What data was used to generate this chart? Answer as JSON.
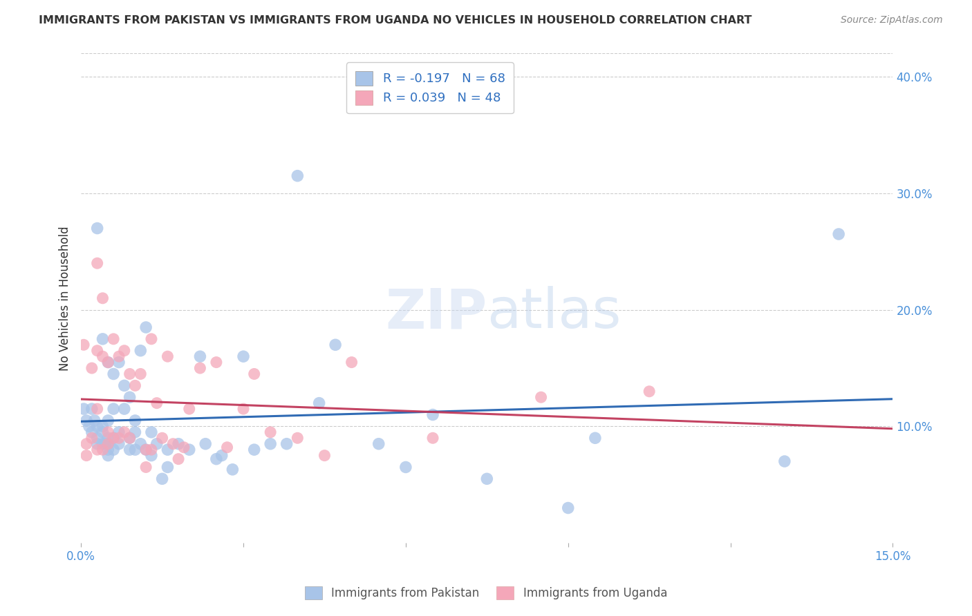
{
  "title": "IMMIGRANTS FROM PAKISTAN VS IMMIGRANTS FROM UGANDA NO VEHICLES IN HOUSEHOLD CORRELATION CHART",
  "source": "Source: ZipAtlas.com",
  "ylabel": "No Vehicles in Household",
  "x_min": 0.0,
  "x_max": 0.15,
  "y_min": 0.0,
  "y_max": 0.42,
  "y_ticks_right": [
    0.0,
    0.1,
    0.2,
    0.3,
    0.4
  ],
  "y_tick_labels_right": [
    "",
    "10.0%",
    "20.0%",
    "30.0%",
    "40.0%"
  ],
  "pakistan_R": -0.197,
  "pakistan_N": 68,
  "uganda_R": 0.039,
  "uganda_N": 48,
  "pakistan_color": "#a8c4e8",
  "pakistan_trend_color": "#2563b0",
  "uganda_color": "#f4a7b9",
  "uganda_trend_color": "#c0395a",
  "pakistan_x": [
    0.0005,
    0.001,
    0.0015,
    0.002,
    0.002,
    0.0025,
    0.003,
    0.003,
    0.003,
    0.004,
    0.004,
    0.004,
    0.0045,
    0.005,
    0.005,
    0.005,
    0.005,
    0.005,
    0.006,
    0.006,
    0.006,
    0.006,
    0.007,
    0.007,
    0.007,
    0.008,
    0.008,
    0.009,
    0.009,
    0.009,
    0.01,
    0.01,
    0.01,
    0.011,
    0.011,
    0.012,
    0.012,
    0.013,
    0.013,
    0.014,
    0.015,
    0.016,
    0.016,
    0.018,
    0.02,
    0.022,
    0.023,
    0.025,
    0.026,
    0.028,
    0.03,
    0.032,
    0.035,
    0.038,
    0.04,
    0.044,
    0.047,
    0.055,
    0.06,
    0.065,
    0.075,
    0.09,
    0.095,
    0.13,
    0.14,
    0.003,
    0.004,
    0.005
  ],
  "pakistan_y": [
    0.115,
    0.105,
    0.1,
    0.115,
    0.095,
    0.105,
    0.1,
    0.09,
    0.085,
    0.1,
    0.095,
    0.085,
    0.085,
    0.105,
    0.09,
    0.085,
    0.08,
    0.075,
    0.145,
    0.115,
    0.09,
    0.08,
    0.155,
    0.095,
    0.085,
    0.135,
    0.115,
    0.125,
    0.09,
    0.08,
    0.105,
    0.095,
    0.08,
    0.165,
    0.085,
    0.185,
    0.08,
    0.095,
    0.075,
    0.085,
    0.055,
    0.08,
    0.065,
    0.085,
    0.08,
    0.16,
    0.085,
    0.072,
    0.075,
    0.063,
    0.16,
    0.08,
    0.085,
    0.085,
    0.315,
    0.12,
    0.17,
    0.085,
    0.065,
    0.11,
    0.055,
    0.03,
    0.09,
    0.07,
    0.265,
    0.27,
    0.175,
    0.155
  ],
  "uganda_x": [
    0.0005,
    0.001,
    0.001,
    0.002,
    0.002,
    0.003,
    0.003,
    0.003,
    0.004,
    0.004,
    0.004,
    0.005,
    0.005,
    0.005,
    0.006,
    0.006,
    0.007,
    0.007,
    0.008,
    0.008,
    0.009,
    0.009,
    0.01,
    0.011,
    0.012,
    0.012,
    0.013,
    0.013,
    0.014,
    0.015,
    0.016,
    0.017,
    0.018,
    0.019,
    0.02,
    0.022,
    0.025,
    0.027,
    0.03,
    0.032,
    0.035,
    0.04,
    0.045,
    0.05,
    0.065,
    0.085,
    0.105,
    0.003
  ],
  "uganda_y": [
    0.17,
    0.085,
    0.075,
    0.15,
    0.09,
    0.165,
    0.115,
    0.08,
    0.21,
    0.16,
    0.08,
    0.155,
    0.095,
    0.085,
    0.175,
    0.09,
    0.16,
    0.09,
    0.165,
    0.095,
    0.145,
    0.09,
    0.135,
    0.145,
    0.08,
    0.065,
    0.175,
    0.08,
    0.12,
    0.09,
    0.16,
    0.085,
    0.072,
    0.082,
    0.115,
    0.15,
    0.155,
    0.082,
    0.115,
    0.145,
    0.095,
    0.09,
    0.075,
    0.155,
    0.09,
    0.125,
    0.13,
    0.24
  ],
  "watermark_zip": "ZIP",
  "watermark_atlas": "atlas",
  "legend_pakistan_label": "Immigrants from Pakistan",
  "legend_uganda_label": "Immigrants from Uganda",
  "background_color": "#ffffff",
  "grid_color": "#cccccc",
  "title_color": "#333333",
  "axis_tick_color": "#4a90d9"
}
